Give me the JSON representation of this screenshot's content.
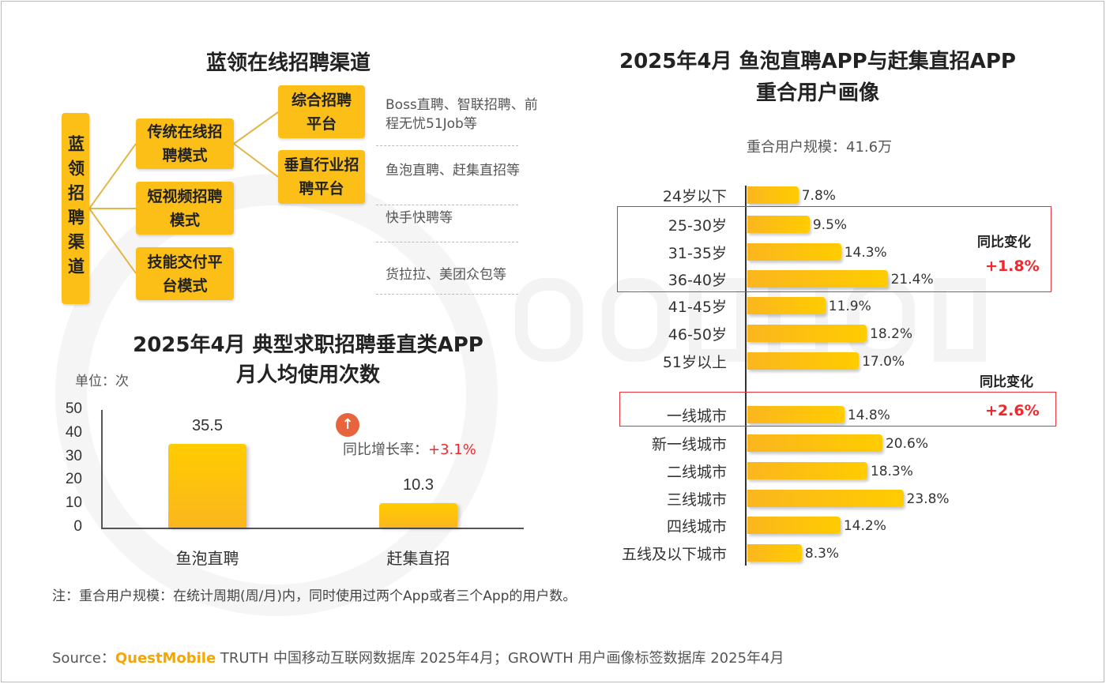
{
  "diagram": {
    "title": "蓝领在线招聘渠道",
    "root": "蓝领招聘渠道",
    "modes": [
      "传统在线招聘模式",
      "短视频招聘模式",
      "技能交付平台模式"
    ],
    "platforms": [
      "综合招聘平台",
      "垂直行业招聘平台"
    ],
    "examples": [
      "Boss直聘、智联招聘、前程无忧51Job等",
      "鱼泡直聘、赶集直招等",
      "快手快聘等",
      "货拉拉、美团众包等"
    ]
  },
  "chart_data": [
    {
      "type": "bar",
      "title": "2025年4月 典型求职招聘垂直类APP 月人均使用次数",
      "title_lines": [
        "2025年4月 典型求职招聘垂直类APP",
        "月人均使用次数"
      ],
      "unit": "单位：次",
      "categories": [
        "鱼泡直聘",
        "赶集直招"
      ],
      "values": [
        35.5,
        10.3
      ],
      "value_labels": [
        "35.5",
        "10.3"
      ],
      "ylim": [
        0,
        50
      ],
      "yticks": [
        "0",
        "10",
        "20",
        "30",
        "40",
        "50"
      ],
      "annotation": {
        "label": "同比增长率：",
        "value": "+3.1%"
      }
    },
    {
      "type": "bar",
      "orientation": "horizontal",
      "title": "2025年4月 鱼泡直聘APP与赶集直招APP 重合用户画像",
      "title_lines": [
        "2025年4月 鱼泡直聘APP与赶集直招APP",
        "重合用户画像"
      ],
      "subtitle": "重合用户规模：41.6万",
      "age": {
        "categories": [
          "24岁以下",
          "25-30岁",
          "31-35岁",
          "36-40岁",
          "41-45岁",
          "46-50岁",
          "51岁以上"
        ],
        "values": [
          7.8,
          9.5,
          14.3,
          21.4,
          11.9,
          18.2,
          17.0
        ],
        "labels": [
          "7.8%",
          "9.5%",
          "14.3%",
          "21.4%",
          "11.9%",
          "18.2%",
          "17.0%"
        ]
      },
      "city": {
        "categories": [
          "一线城市",
          "新一线城市",
          "二线城市",
          "三线城市",
          "四线城市",
          "五线及以下城市"
        ],
        "values": [
          14.8,
          20.6,
          18.3,
          23.8,
          14.2,
          8.3
        ],
        "labels": [
          "14.8%",
          "20.6%",
          "18.3%",
          "23.8%",
          "14.2%",
          "8.3%"
        ]
      },
      "annotations": [
        {
          "label": "同比变化",
          "value": "+1.8%"
        },
        {
          "label": "同比变化",
          "value": "+2.6%"
        }
      ]
    }
  ],
  "footer": {
    "note": "注：重合用户规模：在统计周期(周/月)内，同时使用过两个App或者三个App的用户数。",
    "source_prefix": "Source：",
    "brand": "QuestMobile",
    "source_rest": " TRUTH 中国移动互联网数据库 2025年4月；GROWTH 用户画像标签数据库 2025年4月"
  },
  "watermark": "QUESTMOBILE",
  "colors": {
    "accent": "#fbbf17",
    "red": "#f0282d",
    "brand": "#f7a600"
  }
}
